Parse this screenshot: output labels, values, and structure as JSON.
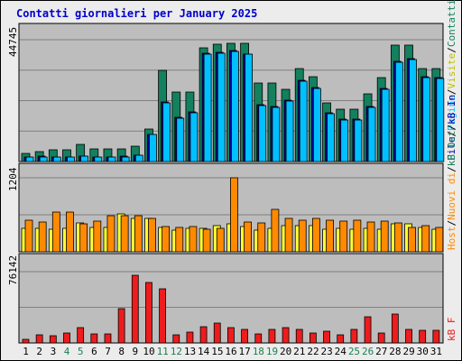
{
  "title": "Contatti giornalieri per January 2025",
  "colors": {
    "visits": "#13805e",
    "pages": "#2b9af0",
    "hits": "#00c0ff",
    "files": "#0000a0",
    "hosts": "#ff8a00",
    "kb_out": "#ffff33",
    "kb_in": "#c0c000",
    "kb_f": "#ee1c1c",
    "weekend_label": "#1c8050",
    "weekday_label": "#000000",
    "title": "#0000cc"
  },
  "side_labels": {
    "top": [
      "File",
      "Pagine",
      "Visite",
      "Contatti"
    ],
    "middle": [
      "Host",
      "Nuovi di",
      "kB Out",
      "kB In"
    ],
    "bottom": [
      "kB F"
    ]
  },
  "chart_data": [
    {
      "type": "bar",
      "panel": "top",
      "y_label": "44745",
      "ylim": [
        0,
        44745
      ],
      "grid": true,
      "categories": [
        "1",
        "2",
        "3",
        "4",
        "5",
        "6",
        "7",
        "8",
        "9",
        "10",
        "11",
        "12",
        "13",
        "14",
        "15",
        "16",
        "17",
        "18",
        "19",
        "20",
        "21",
        "22",
        "23",
        "24",
        "25",
        "26",
        "27",
        "28",
        "29",
        "30",
        "31"
      ],
      "weekend": [
        false,
        false,
        false,
        true,
        true,
        false,
        false,
        false,
        false,
        false,
        true,
        true,
        false,
        false,
        false,
        false,
        false,
        true,
        true,
        false,
        false,
        false,
        false,
        false,
        true,
        true,
        false,
        false,
        false,
        false,
        false
      ],
      "series": [
        {
          "key": "contatti",
          "values": [
            3100,
            3800,
            4300,
            4300,
            6400,
            4500,
            4500,
            4500,
            5700,
            12000,
            33400,
            25600,
            25600,
            41700,
            43100,
            43300,
            43300,
            29000,
            29000,
            26600,
            34100,
            31100,
            21400,
            19100,
            19100,
            24800,
            30800,
            42800,
            42900,
            34300,
            34300
          ]
        },
        {
          "key": "visite",
          "values": [
            800,
            900,
            900,
            900,
            1000,
            900,
            900,
            900,
            1000,
            1200,
            1700,
            1600,
            1600,
            2200,
            2300,
            2300,
            2300,
            2000,
            2000,
            1900,
            2000,
            1900,
            1700,
            1600,
            1600,
            1800,
            2000,
            2500,
            2500,
            2200,
            2200
          ]
        },
        {
          "key": "pagine",
          "values": [
            1500,
            1800,
            1700,
            1600,
            2000,
            1700,
            1700,
            1800,
            2200,
            9800,
            21700,
            16000,
            17800,
            39400,
            39700,
            40600,
            39300,
            20500,
            19900,
            22300,
            29400,
            26900,
            17700,
            15400,
            15300,
            20000,
            26500,
            36400,
            37400,
            30700,
            30500
          ]
        },
        {
          "key": "file",
          "values": [
            1700,
            1900,
            1800,
            1700,
            2100,
            1800,
            1800,
            1900,
            2300,
            10000,
            22000,
            16300,
            18100,
            39700,
            40000,
            40900,
            39600,
            20800,
            20200,
            22600,
            29700,
            27200,
            18000,
            15700,
            15600,
            20300,
            26800,
            36700,
            37700,
            31000,
            30800
          ]
        }
      ]
    },
    {
      "type": "bar",
      "panel": "middle",
      "y_label": "1204",
      "ylim": [
        0,
        1204
      ],
      "grid": true,
      "categories": [
        "1",
        "2",
        "3",
        "4",
        "5",
        "6",
        "7",
        "8",
        "9",
        "10",
        "11",
        "12",
        "13",
        "14",
        "15",
        "16",
        "17",
        "18",
        "19",
        "20",
        "21",
        "22",
        "23",
        "24",
        "25",
        "26",
        "27",
        "28",
        "29",
        "30",
        "31"
      ],
      "series": [
        {
          "key": "kb_out",
          "values": [
            380,
            380,
            360,
            380,
            470,
            390,
            390,
            620,
            540,
            550,
            390,
            350,
            380,
            380,
            430,
            450,
            410,
            350,
            380,
            430,
            430,
            420,
            360,
            380,
            370,
            380,
            360,
            450,
            450,
            400,
            370
          ]
        },
        {
          "key": "host",
          "values": [
            520,
            480,
            650,
            650,
            460,
            500,
            580,
            590,
            590,
            550,
            410,
            400,
            410,
            370,
            380,
            1204,
            490,
            470,
            690,
            550,
            520,
            540,
            510,
            500,
            510,
            490,
            500,
            470,
            400,
            430,
            390
          ]
        }
      ]
    },
    {
      "type": "bar",
      "panel": "bottom",
      "y_label": "76142",
      "ylim": [
        0,
        76142
      ],
      "grid": true,
      "categories": [
        "1",
        "2",
        "3",
        "4",
        "5",
        "6",
        "7",
        "8",
        "9",
        "10",
        "11",
        "12",
        "13",
        "14",
        "15",
        "16",
        "17",
        "18",
        "19",
        "20",
        "21",
        "22",
        "23",
        "24",
        "25",
        "26",
        "27",
        "28",
        "29",
        "30",
        "31"
      ],
      "series": [
        {
          "key": "kb_f",
          "values": [
            4300,
            9100,
            7400,
            10800,
            16200,
            10000,
            10000,
            37000,
            72000,
            65000,
            58000,
            9100,
            11500,
            17000,
            21000,
            16700,
            14200,
            10000,
            14700,
            16700,
            14200,
            10500,
            12200,
            9100,
            14700,
            27700,
            10800,
            30800,
            14700,
            13200,
            13700
          ]
        }
      ]
    }
  ]
}
